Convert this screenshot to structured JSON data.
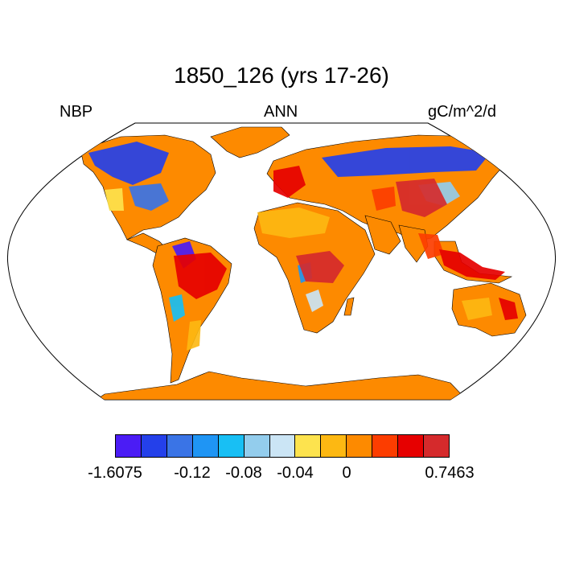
{
  "title": "1850_126 (yrs 17-26)",
  "subtitles": {
    "left": "NBP",
    "center": "ANN",
    "right": "gC/m^2/d"
  },
  "colorbar": {
    "colors": [
      "#4b1cf5",
      "#2440ea",
      "#3a74e6",
      "#1f95f4",
      "#18bff4",
      "#93cded",
      "#cbe5f5",
      "#fde34e",
      "#fdb812",
      "#fd8a00",
      "#fc3d00",
      "#e60000",
      "#d52a2c"
    ],
    "labels": [
      "-1.6075",
      "-0.12",
      "-0.08",
      "-0.04",
      "0",
      "0.7463"
    ]
  },
  "map": {
    "projection": "Robinson",
    "ocean_color": "#ffffff",
    "land_default_color": "#fd8a00",
    "regions": [
      {
        "name": "Greenland",
        "value_class": "orange"
      },
      {
        "name": "Antarctica",
        "value_class": "orange"
      },
      {
        "name": "North America boreal",
        "value_class": "blue"
      },
      {
        "name": "Siberia",
        "value_class": "blue"
      },
      {
        "name": "Amazon",
        "value_class": "red"
      },
      {
        "name": "Central Africa",
        "value_class": "red"
      },
      {
        "name": "Southeast Asia",
        "value_class": "red"
      },
      {
        "name": "Sahara",
        "value_class": "orange"
      },
      {
        "name": "Australia",
        "value_class": "orange"
      }
    ]
  }
}
